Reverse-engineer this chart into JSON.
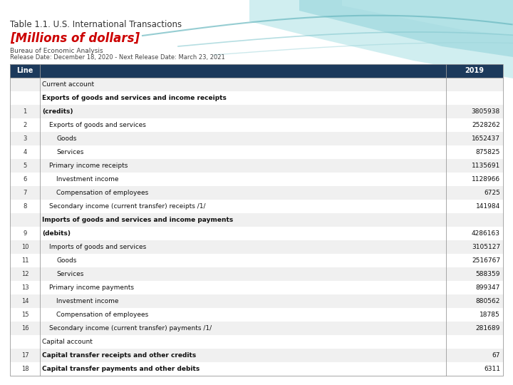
{
  "title_line1": "Table 1.1. U.S. International Transactions",
  "title_line2": "[Millions of dollars]",
  "subtitle1": "Bureau of Economic Analysis",
  "subtitle2": "Release Date: December 18, 2020 - Next Release Date: March 23, 2021",
  "header_bg": "#1c3a5c",
  "header_text_color": "#ffffff",
  "col_header_line": "Line",
  "col_header_year": "2019",
  "rows": [
    {
      "line": "",
      "indent": 0,
      "bold": false,
      "text": "Current account",
      "value": ""
    },
    {
      "line": "",
      "indent": 0,
      "bold": true,
      "text": "Exports of goods and services and income receipts",
      "value": ""
    },
    {
      "line": "1",
      "indent": 0,
      "bold": true,
      "text": "(credits)",
      "value": "3805938"
    },
    {
      "line": "2",
      "indent": 1,
      "bold": false,
      "text": "Exports of goods and services",
      "value": "2528262"
    },
    {
      "line": "3",
      "indent": 2,
      "bold": false,
      "text": "Goods",
      "value": "1652437"
    },
    {
      "line": "4",
      "indent": 2,
      "bold": false,
      "text": "Services",
      "value": "875825"
    },
    {
      "line": "5",
      "indent": 1,
      "bold": false,
      "text": "Primary income receipts",
      "value": "1135691"
    },
    {
      "line": "6",
      "indent": 2,
      "bold": false,
      "text": "Investment income",
      "value": "1128966"
    },
    {
      "line": "7",
      "indent": 2,
      "bold": false,
      "text": "Compensation of employees",
      "value": "6725"
    },
    {
      "line": "8",
      "indent": 1,
      "bold": false,
      "text": "Secondary income (current transfer) receipts /1/",
      "value": "141984"
    },
    {
      "line": "",
      "indent": 0,
      "bold": true,
      "text": "Imports of goods and services and income payments",
      "value": ""
    },
    {
      "line": "9",
      "indent": 0,
      "bold": true,
      "text": "(debits)",
      "value": "4286163"
    },
    {
      "line": "10",
      "indent": 1,
      "bold": false,
      "text": "Imports of goods and services",
      "value": "3105127"
    },
    {
      "line": "11",
      "indent": 2,
      "bold": false,
      "text": "Goods",
      "value": "2516767"
    },
    {
      "line": "12",
      "indent": 2,
      "bold": false,
      "text": "Services",
      "value": "588359"
    },
    {
      "line": "13",
      "indent": 1,
      "bold": false,
      "text": "Primary income payments",
      "value": "899347"
    },
    {
      "line": "14",
      "indent": 2,
      "bold": false,
      "text": "Investment income",
      "value": "880562"
    },
    {
      "line": "15",
      "indent": 2,
      "bold": false,
      "text": "Compensation of employees",
      "value": "18785"
    },
    {
      "line": "16",
      "indent": 1,
      "bold": false,
      "text": "Secondary income (current transfer) payments /1/",
      "value": "281689"
    },
    {
      "line": "",
      "indent": 0,
      "bold": false,
      "text": "Capital account",
      "value": ""
    },
    {
      "line": "17",
      "indent": 0,
      "bold": true,
      "text": "Capital transfer receipts and other credits",
      "value": "67"
    },
    {
      "line": "18",
      "indent": 0,
      "bold": true,
      "text": "Capital transfer payments and other debits",
      "value": "6311"
    }
  ],
  "bg_color": "#ffffff",
  "title_color1": "#333333",
  "title_color2": "#cc0000",
  "wave_colors": [
    "#b0e0e6",
    "#87cecc",
    "#a8d8da",
    "#6bbdc4"
  ],
  "stripe_even": "#f0f0f0",
  "stripe_odd": "#ffffff"
}
